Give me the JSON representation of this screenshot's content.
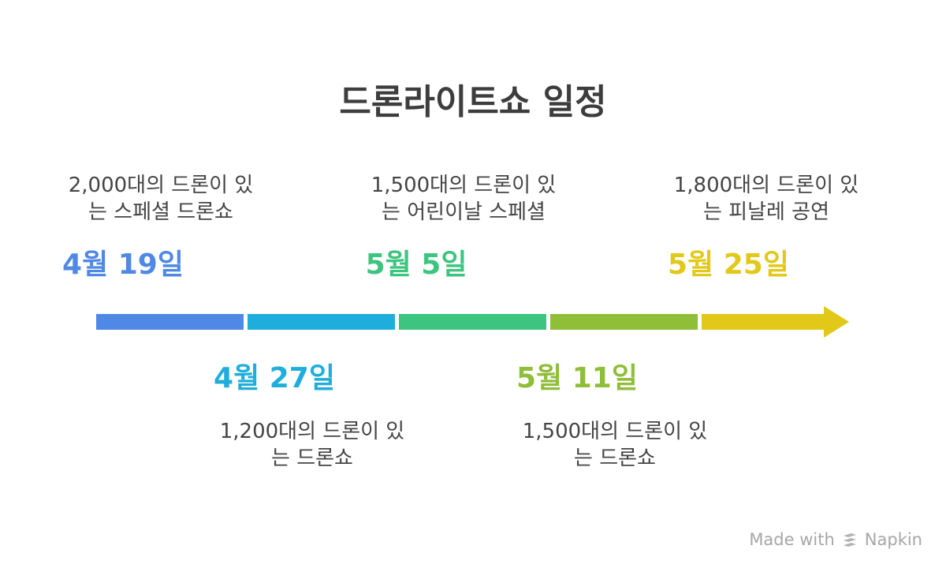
{
  "title": "드론라이트쇼 일정",
  "colors": {
    "blue": "#4f88e5",
    "cyan": "#1faedc",
    "green": "#3dc57f",
    "lime": "#8fbe38",
    "yellow": "#e2c919"
  },
  "events": [
    {
      "date": "4월 19일",
      "line1": "2,000대의 드론이 있",
      "line2": "는 스페셜 드론쇼",
      "color": "#4f88e5"
    },
    {
      "date": "4월 27일",
      "line1": "1,200대의 드론이 있",
      "line2": "는 드론쇼",
      "color": "#1faedc"
    },
    {
      "date": "5월 5일",
      "line1": "1,500대의 드론이 있",
      "line2": "는 어린이날 스페셜",
      "color": "#3dc57f"
    },
    {
      "date": "5월 11일",
      "line1": "1,500대의 드론이 있",
      "line2": "는 드론쇼",
      "color": "#8fbe38"
    },
    {
      "date": "5월 25일",
      "line1": "1,800대의 드론이 있",
      "line2": "는 피날레 공연",
      "color": "#e2c919"
    }
  ],
  "watermark": {
    "made_with": "Made with",
    "brand": "Napkin",
    "icon": "napkin-logo-icon"
  }
}
